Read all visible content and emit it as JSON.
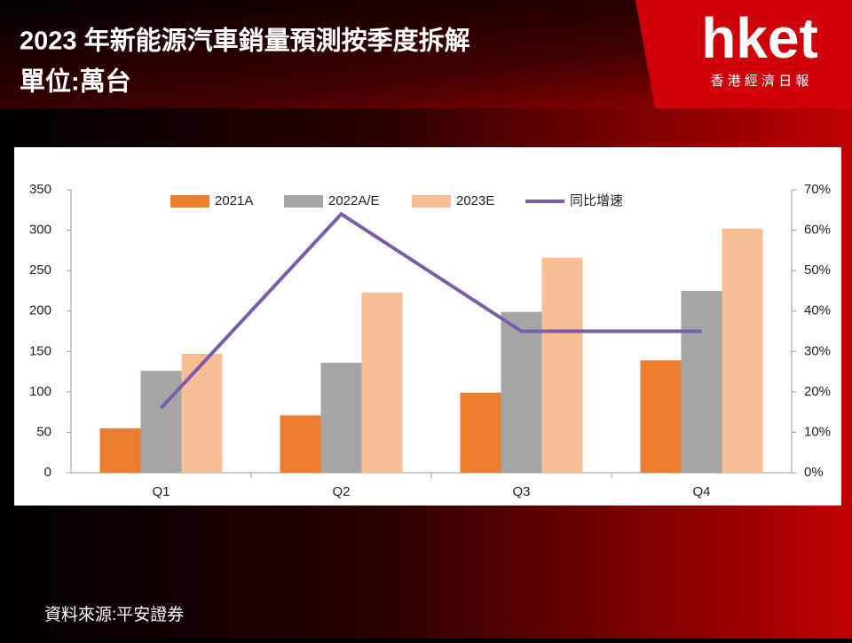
{
  "brand": {
    "name": "hket",
    "tagline": "香 港 經 濟 日 報"
  },
  "chart_data": {
    "type": "bar",
    "title": "2023 年新能源汽車銷量預測按季度拆解",
    "subtitle": "單位:萬台",
    "source": "資料來源:平安證券",
    "categories": [
      "Q1",
      "Q2",
      "Q3",
      "Q4"
    ],
    "series": [
      {
        "name": "2021A",
        "color": "#ed7d31",
        "values": [
          55,
          71,
          99,
          139
        ]
      },
      {
        "name": "2022A/E",
        "color": "#a5a5a5",
        "values": [
          126,
          136,
          199,
          225
        ]
      },
      {
        "name": "2023E",
        "color": "#f8be95",
        "values": [
          147,
          223,
          266,
          302
        ]
      },
      {
        "name": "同比增速",
        "color": "#7b5ea7",
        "type": "line",
        "axis": "y2",
        "values": [
          16,
          64,
          35,
          35
        ]
      }
    ],
    "ylim": [
      0,
      350
    ],
    "yticks": [
      0,
      50,
      100,
      150,
      200,
      250,
      300,
      350
    ],
    "y2lim": [
      0,
      70
    ],
    "y2ticks": [
      {
        "value": 0,
        "label": "0%"
      },
      {
        "value": 10,
        "label": "10%"
      },
      {
        "value": 20,
        "label": "20%"
      },
      {
        "value": 30,
        "label": "30%"
      },
      {
        "value": 40,
        "label": "40%"
      },
      {
        "value": 50,
        "label": "50%"
      },
      {
        "value": 60,
        "label": "60%"
      },
      {
        "value": 70,
        "label": "70%"
      }
    ],
    "legend": "top",
    "grid": false
  }
}
